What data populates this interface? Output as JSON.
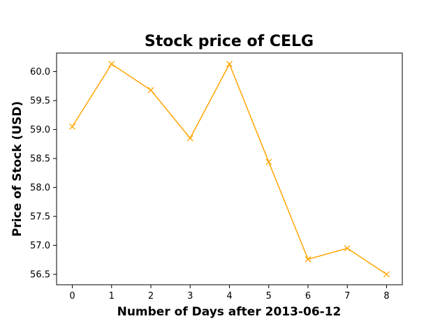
{
  "chart_data": {
    "type": "line",
    "title": "Stock price of CELG",
    "xlabel": "Number of Days after 2013-06-12",
    "ylabel": "Price of Stock (USD)",
    "x": [
      0,
      1,
      2,
      3,
      4,
      5,
      6,
      7,
      8
    ],
    "series": [
      {
        "values": [
          59.05,
          60.13,
          59.68,
          58.85,
          60.13,
          58.44,
          56.76,
          56.95,
          56.5
        ],
        "color": "#ffa500",
        "marker": "x"
      }
    ],
    "xticks": [
      "0",
      "1",
      "2",
      "3",
      "4",
      "5",
      "6",
      "7",
      "8"
    ],
    "yticks": [
      "56.5",
      "57.0",
      "57.5",
      "58.0",
      "58.5",
      "59.0",
      "59.5",
      "60.0"
    ],
    "xlim": [
      -0.4,
      8.4
    ],
    "ylim": [
      56.32,
      60.32
    ],
    "grid": false,
    "legend": "none"
  }
}
